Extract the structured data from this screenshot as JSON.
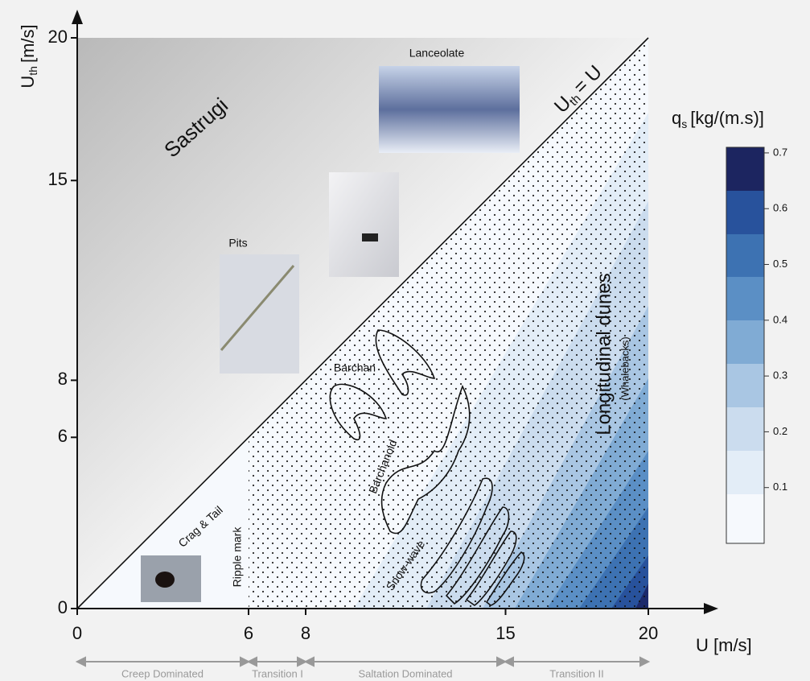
{
  "axes": {
    "x_label": "U [m/s]",
    "y_label_main": "U",
    "y_label_sub": "th",
    "y_label_unit": "[m/s]",
    "xlim": [
      0,
      20
    ],
    "ylim": [
      0,
      20
    ],
    "xticks": [
      0,
      6,
      8,
      15,
      20
    ],
    "yticks": [
      0,
      6,
      8,
      15,
      20
    ]
  },
  "diagonal": {
    "main": "U",
    "sub": "th",
    "rest": "= U"
  },
  "regions": {
    "sastrugi": "Sastrugi",
    "longitudinal": "Longitudinal dunes",
    "whalebacks": "(Whalebacks)",
    "barchan": "Barchan",
    "barchanoid": "Barchanoid",
    "snow_wave": "Snow-wave",
    "crag": "Crag & Tail",
    "ripple": "Ripple mark",
    "pits": "Pits",
    "lanceolate": "Lanceolate"
  },
  "colorbar": {
    "title_main": "q",
    "title_sub": "s",
    "title_unit": "[kg/(m.s)]",
    "lim": [
      0,
      0.71
    ],
    "ticks": [
      0.1,
      0.2,
      0.3,
      0.4,
      0.5,
      0.6,
      0.7
    ]
  },
  "regimes": [
    "Creep Dominated",
    "Transition I",
    "Saltation Dominated",
    "Transition II"
  ]
}
